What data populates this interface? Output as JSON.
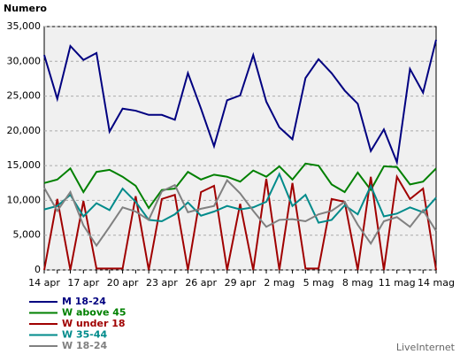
{
  "chart_data": {
    "type": "line",
    "title": "Numero",
    "annotation": "LiveInternet",
    "categories": [
      "14 apr",
      null,
      null,
      "17 apr",
      null,
      null,
      "20 apr",
      null,
      null,
      "23 apr",
      null,
      null,
      "26 apr",
      null,
      null,
      "29 apr",
      null,
      null,
      "2 mag",
      null,
      null,
      "5 mag",
      null,
      null,
      "8 mag",
      null,
      null,
      "11 mag",
      null,
      null,
      "14 mag"
    ],
    "series": [
      {
        "name": "M 18-24",
        "color": "#000080",
        "values": [
          30900,
          24600,
          32200,
          30200,
          31200,
          19900,
          23200,
          22900,
          22300,
          22300,
          21600,
          28300,
          23200,
          17800,
          24400,
          25100,
          30900,
          24200,
          20500,
          18800,
          27600,
          30300,
          28300,
          25800,
          23900,
          17100,
          20200,
          15500,
          28900,
          25500,
          33100
        ]
      },
      {
        "name": "W above 45",
        "color": "#008000",
        "values": [
          12500,
          13000,
          14600,
          11200,
          14100,
          14400,
          13400,
          12100,
          8900,
          11500,
          11700,
          14100,
          13000,
          13700,
          13400,
          12700,
          14300,
          13400,
          14900,
          13000,
          15300,
          15000,
          12300,
          11200,
          14000,
          11500,
          14900,
          14800,
          12300,
          12700,
          14600
        ]
      },
      {
        "name": "W under 18",
        "color": "#a00000",
        "values": [
          0,
          10200,
          0,
          9900,
          200,
          200,
          200,
          10600,
          0,
          10200,
          10800,
          0,
          11200,
          12100,
          0,
          9500,
          0,
          13100,
          0,
          12500,
          200,
          200,
          10200,
          9800,
          0,
          13400,
          0,
          13400,
          10200,
          11700,
          0
        ]
      },
      {
        "name": "W 35-44",
        "color": "#008b8b",
        "values": [
          8700,
          9200,
          10800,
          7700,
          9600,
          8600,
          11700,
          9800,
          7200,
          7000,
          8000,
          9700,
          7800,
          8400,
          9200,
          8700,
          9000,
          9800,
          13800,
          9200,
          10800,
          6800,
          7200,
          9300,
          8000,
          12100,
          7700,
          8100,
          9000,
          8300,
          10400
        ]
      },
      {
        "name": "W 18-24",
        "color": "#808080",
        "values": [
          11800,
          8500,
          11200,
          6400,
          3500,
          6200,
          9000,
          8400,
          7200,
          11300,
          12200,
          8300,
          8800,
          9200,
          12900,
          11000,
          8500,
          6200,
          7200,
          7300,
          7000,
          8000,
          8500,
          9800,
          6500,
          3800,
          7000,
          7600,
          6200,
          8600,
          5600
        ]
      }
    ],
    "ylim": [
      0,
      35000
    ],
    "yticks": [
      0,
      {
        "value": 5000,
        "label": "5,000"
      },
      {
        "value": 10000,
        "label": "10,000"
      },
      {
        "value": 15000,
        "label": "15,000"
      },
      {
        "value": 20000,
        "label": "20,000"
      },
      {
        "value": 25000,
        "label": "25,000"
      },
      {
        "value": 30000,
        "label": "30,000"
      },
      {
        "value": 35000,
        "label": "35,000"
      }
    ],
    "grid": true
  }
}
